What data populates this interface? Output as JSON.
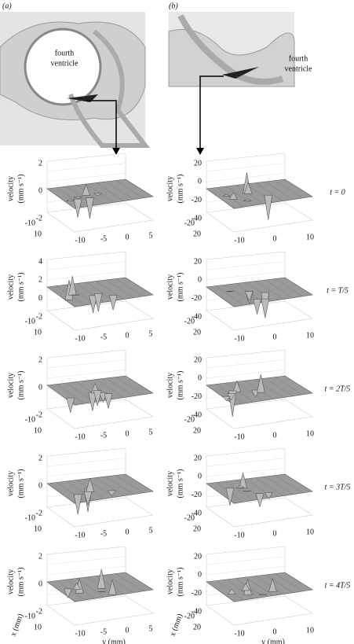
{
  "columns": [
    {
      "label": "(a)",
      "anatomy": [
        "fourth",
        "ventricle"
      ],
      "plots": [
        {
          "zticks": [
            2,
            0,
            -2
          ],
          "xticks": [
            -10,
            10
          ],
          "yticks": [
            -10,
            -5,
            0,
            5
          ]
        },
        {
          "zticks": [
            4,
            2,
            0,
            -2
          ],
          "xticks": [
            -10,
            10
          ],
          "yticks": [
            -10,
            -5,
            0,
            5
          ]
        },
        {
          "zticks": [
            2,
            0,
            -2
          ],
          "xticks": [
            -10,
            10
          ],
          "yticks": [
            -10,
            -5,
            0,
            5
          ]
        },
        {
          "zticks": [
            2,
            0,
            -2
          ],
          "xticks": [
            -10,
            10
          ],
          "yticks": [
            -10,
            -5,
            0,
            5
          ]
        },
        {
          "zticks": [
            2,
            0,
            -2
          ],
          "xticks": [
            -10,
            10
          ],
          "yticks": [
            -10,
            -5,
            0,
            5
          ]
        }
      ]
    },
    {
      "label": "(b)",
      "anatomy": [
        "fourth",
        "ventricle"
      ],
      "plots": [
        {
          "zticks": [
            20,
            0,
            -20,
            -40
          ],
          "xticks": [
            -20,
            20
          ],
          "yticks": [
            -10,
            0,
            10
          ],
          "time": "t = 0"
        },
        {
          "zticks": [
            20,
            0,
            -20,
            -40
          ],
          "xticks": [
            -20,
            20
          ],
          "yticks": [
            -10,
            0,
            10
          ],
          "time": "t = T/5"
        },
        {
          "zticks": [
            20,
            0,
            -20,
            -40
          ],
          "xticks": [
            -20,
            20
          ],
          "yticks": [
            -10,
            0,
            10
          ],
          "time": "t = 2T/5"
        },
        {
          "zticks": [
            20,
            0,
            -20,
            -40
          ],
          "xticks": [
            -20,
            20
          ],
          "yticks": [
            -10,
            0,
            10
          ],
          "time": "t = 3T/5"
        },
        {
          "zticks": [
            20,
            0,
            -20,
            -40
          ],
          "xticks": [
            -20,
            20
          ],
          "yticks": [
            -10,
            0,
            10
          ],
          "time": "t = 4T/5"
        }
      ]
    }
  ],
  "axis_titles": {
    "z": [
      "velocity",
      "(mm s⁻¹)"
    ],
    "x": "x (mm)",
    "y": "y (mm)"
  }
}
